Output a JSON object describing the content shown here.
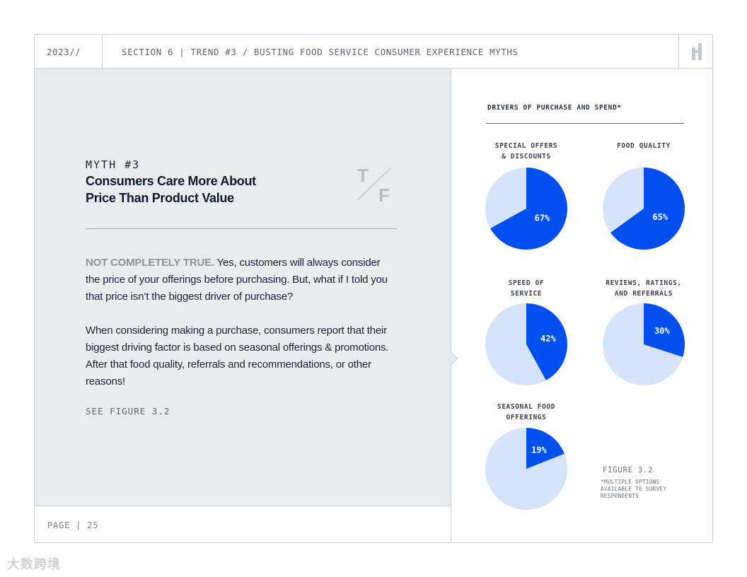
{
  "header": {
    "year": "2023//",
    "section_title": "SECTION 6 | TREND #3 / BUSTING FOOD SERVICE CONSUMER EXPERIENCE MYTHS"
  },
  "article": {
    "myth_number": "MYTH #3",
    "title_line1": "Consumers Care More About",
    "title_line2": "Price Than Product Value",
    "brand_mark_top": "T",
    "brand_mark_bottom": "F",
    "lead": "NOT COMPLETELY TRUE.",
    "p1": " Yes, customers will always consider the price of your offerings before purchasing. But, what if I told you that price isn’t the biggest driver of purchase?",
    "p2": "When considering making a purchase, consumers report that their biggest driving factor is based on seasonal offerings & promotions. After that food quality, referrals and recommendations, or other reasons!",
    "see_figure": "SEE FIGURE 3.2"
  },
  "footer": {
    "page": "PAGE | 25"
  },
  "watermark": "大数跨境",
  "colors": {
    "accent": "#0050f0",
    "pie_remainder": "#d6e3fb",
    "panel": "#e9ecef"
  },
  "chart_data": {
    "type": "pie",
    "title": "DRIVERS OF PURCHASE AND SPEND*",
    "unit": "%",
    "figure_label": "FIGURE 3.2",
    "footnote": "*MULTIPLE OPTIONS AVAILABLE TO SURVEY RESPONDENTS",
    "series": [
      {
        "label_lines": [
          "SPECIAL OFFERS",
          "& DISCOUNTS"
        ],
        "value": 67,
        "display": "67%"
      },
      {
        "label_lines": [
          "FOOD QUALITY"
        ],
        "value": 65,
        "display": "65%"
      },
      {
        "label_lines": [
          "SPEED OF",
          "SERVICE"
        ],
        "value": 42,
        "display": "42%"
      },
      {
        "label_lines": [
          "REVIEWS, RATINGS,",
          "AND REFERRALS"
        ],
        "value": 30,
        "display": "30%"
      },
      {
        "label_lines": [
          "SEASONAL FOOD",
          "OFFERINGS"
        ],
        "value": 19,
        "display": "19%"
      }
    ]
  }
}
